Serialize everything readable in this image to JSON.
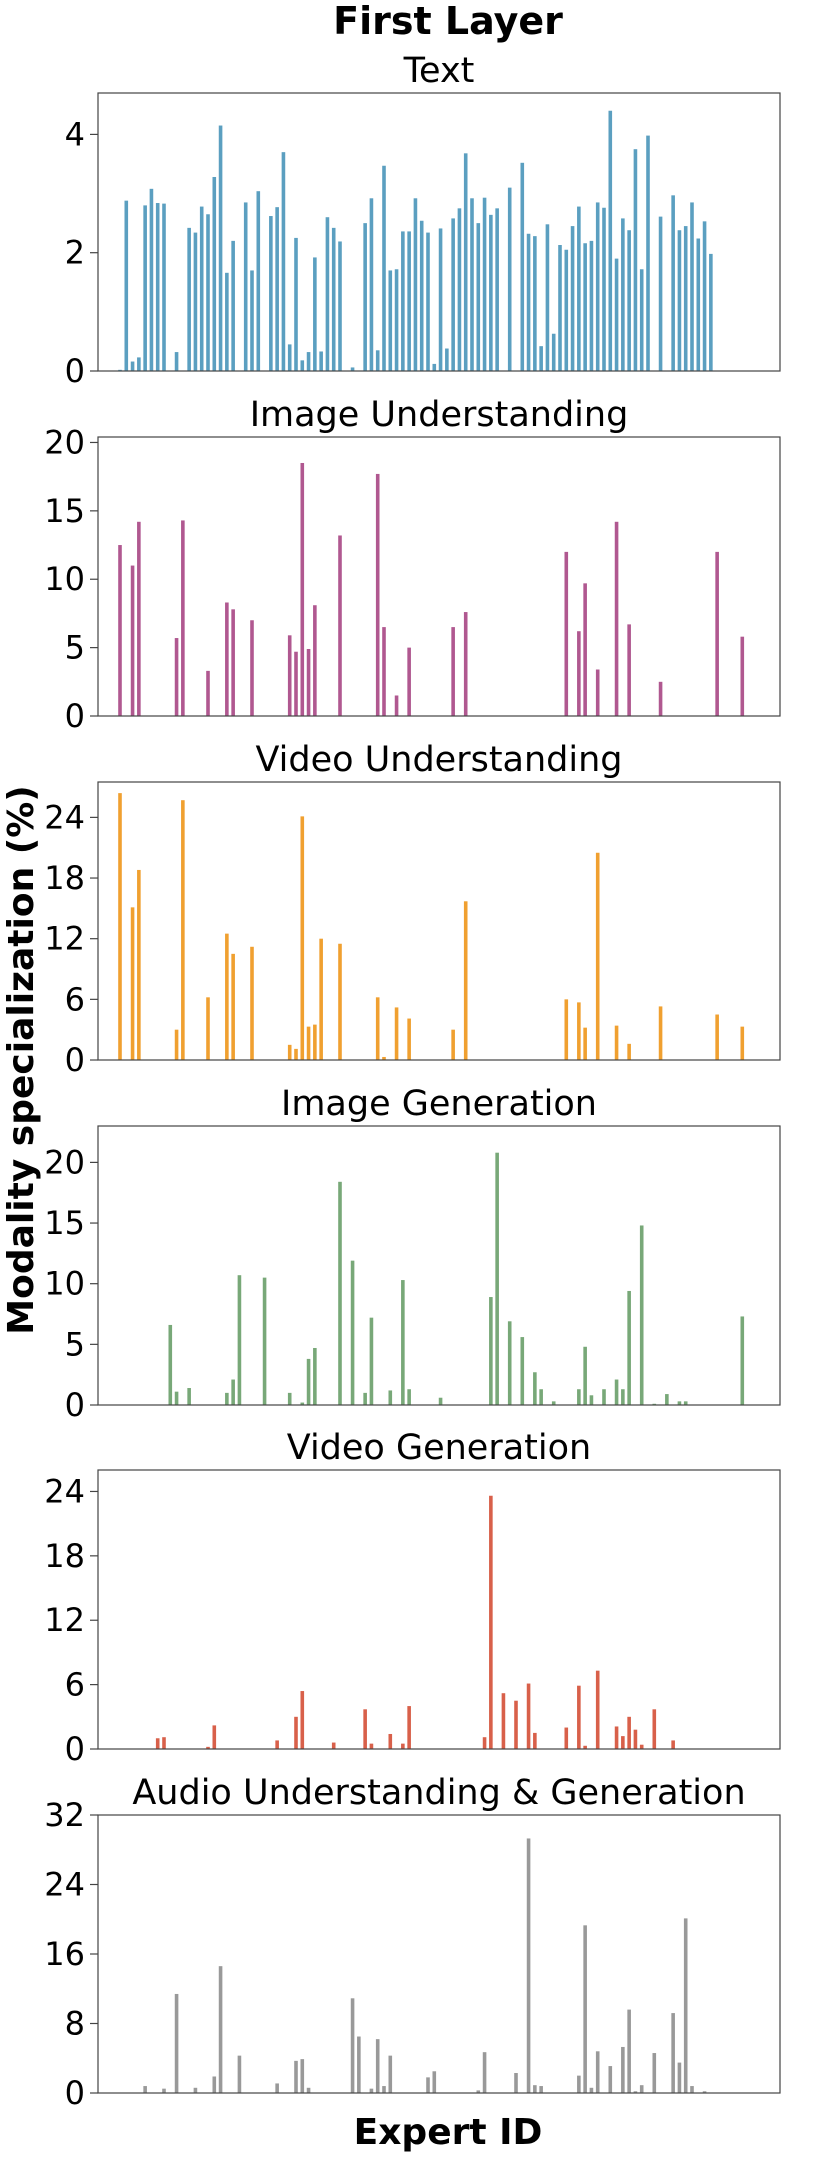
{
  "figure": {
    "title": "First Layer",
    "ylabel": "Modality specialization (%)",
    "xlabel": "Expert ID"
  },
  "chart_data": [
    {
      "type": "bar",
      "title": "Text",
      "color": "#5b9fc0",
      "ylim": [
        0,
        4.7
      ],
      "yticks": [
        0,
        2,
        4
      ],
      "x": [
        1,
        2,
        3,
        4,
        5,
        6,
        7,
        8,
        9,
        10,
        11,
        12,
        13,
        14,
        15,
        16,
        17,
        18,
        19,
        20,
        21,
        22,
        23,
        24,
        25,
        26,
        27,
        28,
        29,
        30,
        31,
        32,
        33,
        34,
        35,
        36,
        37,
        38,
        39,
        40,
        41,
        42,
        43,
        44,
        45,
        46,
        47,
        48,
        49,
        50,
        51,
        52,
        53,
        54,
        55,
        56,
        57,
        58,
        59,
        60,
        61,
        62,
        63,
        64,
        65,
        66,
        67,
        68,
        69,
        70,
        71,
        72,
        73,
        74,
        75,
        76,
        77,
        78,
        79,
        80,
        81,
        82,
        83,
        84,
        85,
        86,
        87,
        88,
        89,
        90,
        91,
        92,
        93,
        94,
        95,
        96,
        97,
        98
      ],
      "values": [
        0.02,
        2.88,
        0.16,
        0.23,
        2.8,
        3.08,
        2.84,
        2.83,
        0,
        0.32,
        0,
        2.42,
        2.34,
        2.78,
        2.65,
        3.28,
        4.15,
        1.66,
        2.2,
        0,
        2.85,
        1.7,
        3.04,
        0,
        2.62,
        2.77,
        3.7,
        0.45,
        2.25,
        0.18,
        0.32,
        1.92,
        0.33,
        2.6,
        2.42,
        2.19,
        0,
        0.06,
        0,
        2.5,
        2.92,
        0.35,
        3.47,
        1.7,
        1.72,
        2.36,
        2.36,
        2.92,
        2.54,
        2.34,
        0.12,
        2.41,
        0.38,
        2.58,
        2.75,
        3.68,
        2.92,
        2.5,
        2.93,
        2.64,
        2.75,
        0,
        3.1,
        0,
        3.52,
        2.32,
        2.28,
        0.42,
        2.48,
        0.63,
        2.13,
        2.05,
        2.45,
        2.78,
        2.16,
        2.2,
        2.85,
        2.76,
        4.4,
        1.9,
        2.58,
        2.38,
        3.75,
        1.72,
        3.98,
        0,
        2.61,
        0,
        2.97,
        2.38,
        2.45,
        2.85,
        2.24,
        2.53,
        1.98,
        0,
        0,
        0
      ]
    },
    {
      "type": "bar",
      "title": "Image Understanding",
      "color": "#b05890",
      "ylim": [
        0,
        20.4
      ],
      "yticks": [
        0,
        5,
        10,
        15,
        20
      ],
      "x": [
        1,
        3,
        4,
        10,
        11,
        15,
        18,
        19,
        22,
        28,
        29,
        30,
        31,
        32,
        36,
        42,
        43,
        45,
        47,
        54,
        56,
        72,
        74,
        75,
        77,
        80,
        82,
        87,
        96,
        100
      ],
      "values": [
        12.5,
        11.0,
        14.2,
        5.7,
        14.3,
        3.3,
        8.3,
        7.8,
        7.0,
        5.9,
        4.7,
        18.5,
        4.9,
        8.1,
        13.2,
        17.7,
        6.5,
        1.5,
        5.0,
        6.5,
        7.6,
        12.0,
        6.2,
        9.7,
        3.4,
        14.2,
        6.7,
        2.5,
        12.0,
        5.8
      ]
    },
    {
      "type": "bar",
      "title": "Video Understanding",
      "color": "#f0a030",
      "ylim": [
        0,
        27.5
      ],
      "yticks": [
        0,
        6,
        12,
        18,
        24
      ],
      "x": [
        1,
        3,
        4,
        10,
        11,
        15,
        18,
        19,
        22,
        28,
        29,
        30,
        31,
        32,
        33,
        36,
        42,
        43,
        45,
        47,
        54,
        56,
        72,
        74,
        75,
        77,
        80,
        82,
        87,
        96,
        100,
        104
      ],
      "values": [
        26.4,
        15.1,
        18.8,
        3.0,
        25.7,
        6.2,
        12.5,
        10.5,
        11.2,
        1.5,
        1.1,
        24.1,
        3.3,
        3.5,
        12.0,
        11.5,
        6.2,
        0.3,
        5.2,
        4.1,
        3.0,
        15.7,
        6.0,
        5.7,
        3.2,
        20.5,
        3.4,
        1.6,
        5.3,
        4.5,
        3.3,
        0
      ]
    },
    {
      "type": "bar",
      "title": "Image Generation",
      "color": "#78a878",
      "ylim": [
        0,
        23
      ],
      "yticks": [
        0,
        5,
        10,
        15,
        20
      ],
      "x": [
        9,
        10,
        12,
        18,
        19,
        20,
        24,
        28,
        30,
        31,
        32,
        36,
        38,
        40,
        41,
        42,
        44,
        46,
        47,
        48,
        52,
        60,
        61,
        62,
        63,
        64,
        65,
        66,
        67,
        68,
        70,
        74,
        75,
        76,
        78,
        80,
        81,
        82,
        83,
        84,
        86,
        88,
        90,
        91,
        92,
        96,
        100
      ],
      "values": [
        6.6,
        1.1,
        1.4,
        1.0,
        2.1,
        10.7,
        10.5,
        1.0,
        0.2,
        3.8,
        4.7,
        18.4,
        11.9,
        1.0,
        7.2,
        0,
        1.2,
        10.3,
        1.3,
        0,
        0.6,
        8.9,
        20.8,
        0,
        6.9,
        0,
        5.6,
        0,
        2.7,
        1.3,
        0.3,
        1.3,
        4.8,
        0.8,
        1.3,
        2.1,
        1.3,
        9.4,
        0,
        14.8,
        0.1,
        0.9,
        0.3,
        0.3,
        0,
        0,
        7.3
      ]
    },
    {
      "type": "bar",
      "title": "Video Generation",
      "color": "#d8604a",
      "ylim": [
        0,
        26
      ],
      "yticks": [
        0,
        6,
        12,
        18,
        24
      ],
      "x": [
        7,
        8,
        15,
        16,
        26,
        29,
        30,
        35,
        40,
        41,
        44,
        46,
        47,
        59,
        60,
        62,
        64,
        66,
        67,
        72,
        74,
        75,
        77,
        80,
        81,
        82,
        83,
        84,
        86,
        89,
        90,
        92
      ],
      "values": [
        1.0,
        1.1,
        0.2,
        2.2,
        0.8,
        3.0,
        5.4,
        0.6,
        3.7,
        0.5,
        1.4,
        0.5,
        4.0,
        1.1,
        23.6,
        5.2,
        4.5,
        6.1,
        1.5,
        2.0,
        5.9,
        0.3,
        7.3,
        2.1,
        1.2,
        3.0,
        1.8,
        0.4,
        3.7,
        0.8,
        0,
        0
      ]
    },
    {
      "type": "bar",
      "title": "Audio Understanding & Generation",
      "color": "#999999",
      "ylim": [
        0,
        32
      ],
      "yticks": [
        0,
        8,
        16,
        24,
        32
      ],
      "x": [
        5,
        8,
        10,
        13,
        16,
        17,
        20,
        26,
        29,
        30,
        31,
        38,
        39,
        41,
        42,
        43,
        44,
        50,
        51,
        58,
        59,
        64,
        66,
        67,
        68,
        70,
        74,
        75,
        76,
        77,
        78,
        79,
        80,
        81,
        82,
        83,
        84,
        85,
        86,
        88,
        89,
        90,
        91,
        92,
        94
      ],
      "values": [
        0.8,
        0.5,
        11.4,
        0.6,
        1.9,
        14.6,
        4.3,
        1.1,
        3.7,
        3.9,
        0.6,
        10.9,
        6.5,
        0.5,
        6.2,
        0.8,
        4.3,
        1.8,
        2.5,
        0.3,
        4.7,
        2.3,
        29.3,
        0.9,
        0.8,
        0,
        2.0,
        19.3,
        0.6,
        4.8,
        0,
        3.1,
        0,
        5.3,
        9.6,
        0.2,
        0.9,
        0,
        4.6,
        0,
        9.2,
        3.5,
        20.1,
        0.8,
        0.2
      ]
    }
  ]
}
